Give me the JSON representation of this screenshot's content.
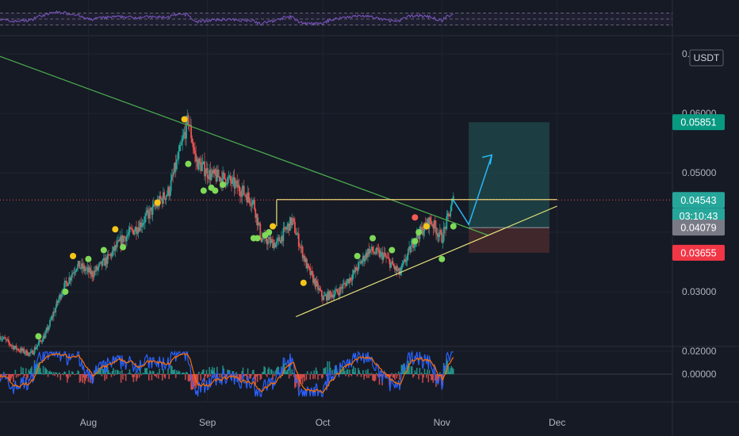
{
  "currency_badge": "USDT",
  "colors": {
    "background": "#161a25",
    "up_candle": "#26a69a",
    "down_candle": "#ef5350",
    "trendline": "#4caf50",
    "triangle": "#e6e27a",
    "rsi_line": "#7e57c2",
    "macd_line": "#2962ff",
    "signal_line": "#ff6d00",
    "projection_arrow": "#29b6f6",
    "profit_zone": "#1f4f4f",
    "loss_zone": "#4a2a2e"
  },
  "chart_data": {
    "type": "candlestick",
    "symbol_quote": "USDT",
    "x_axis": {
      "tick_labels": [
        "Aug",
        "Sep",
        "Oct",
        "Nov",
        "Dec"
      ],
      "tick_dates": [
        "2023-08-01",
        "2023-09-01",
        "2023-10-01",
        "2023-11-01",
        "2023-12-01"
      ],
      "range": [
        "2023-07-09",
        "2023-12-31"
      ]
    },
    "y_axis": {
      "tick_labels": [
        "0.07000",
        "0.06000",
        "0.05000",
        "0.04000",
        "0.03000",
        "0.02000"
      ],
      "tick_values": [
        0.07,
        0.06,
        0.05,
        0.04,
        0.03,
        0.02
      ],
      "range": [
        0.018,
        0.072
      ]
    },
    "price_labels": [
      {
        "text": "0.05851",
        "value": 0.05851,
        "role": "take-profit",
        "color": "#089981"
      },
      {
        "text": "0.04543",
        "value": 0.04543,
        "role": "last-price",
        "color": "#26a69a"
      },
      {
        "text": "03:10:43",
        "role": "candle-countdown",
        "color": "#26a69a"
      },
      {
        "text": "0.04079",
        "value": 0.04079,
        "role": "entry",
        "color": "#787b86"
      },
      {
        "text": "0.03655",
        "value": 0.03655,
        "role": "stop-loss",
        "color": "#f23645"
      }
    ],
    "price_path": [
      [
        "2023-07-09",
        0.0225
      ],
      [
        "2023-07-13",
        0.0205
      ],
      [
        "2023-07-17",
        0.0195
      ],
      [
        "2023-07-21",
        0.023
      ],
      [
        "2023-07-25",
        0.03
      ],
      [
        "2023-07-29",
        0.0345
      ],
      [
        "2023-08-02",
        0.033
      ],
      [
        "2023-08-06",
        0.0355
      ],
      [
        "2023-08-10",
        0.039
      ],
      [
        "2023-08-14",
        0.041
      ],
      [
        "2023-08-18",
        0.044
      ],
      [
        "2023-08-22",
        0.047
      ],
      [
        "2023-08-25",
        0.054
      ],
      [
        "2023-08-27",
        0.059
      ],
      [
        "2023-08-29",
        0.052
      ],
      [
        "2023-09-02",
        0.0495
      ],
      [
        "2023-09-06",
        0.049
      ],
      [
        "2023-09-10",
        0.047
      ],
      [
        "2023-09-13",
        0.045
      ],
      [
        "2023-09-15",
        0.039
      ],
      [
        "2023-09-19",
        0.038
      ],
      [
        "2023-09-23",
        0.042
      ],
      [
        "2023-09-27",
        0.034
      ],
      [
        "2023-10-01",
        0.029
      ],
      [
        "2023-10-05",
        0.03
      ],
      [
        "2023-10-09",
        0.033
      ],
      [
        "2023-10-13",
        0.037
      ],
      [
        "2023-10-17",
        0.036
      ],
      [
        "2023-10-21",
        0.033
      ],
      [
        "2023-10-25",
        0.039
      ],
      [
        "2023-10-29",
        0.042
      ],
      [
        "2023-11-01",
        0.039
      ],
      [
        "2023-11-04",
        0.0454
      ]
    ],
    "signal_dots": [
      {
        "date": "2023-07-19",
        "price": 0.0225,
        "color": "green"
      },
      {
        "date": "2023-07-26",
        "price": 0.03,
        "color": "green"
      },
      {
        "date": "2023-07-28",
        "price": 0.036,
        "color": "yellow"
      },
      {
        "date": "2023-08-01",
        "price": 0.0355,
        "color": "green"
      },
      {
        "date": "2023-08-05",
        "price": 0.037,
        "color": "green"
      },
      {
        "date": "2023-08-08",
        "price": 0.0405,
        "color": "yellow"
      },
      {
        "date": "2023-08-10",
        "price": 0.0375,
        "color": "green"
      },
      {
        "date": "2023-08-19",
        "price": 0.045,
        "color": "yellow"
      },
      {
        "date": "2023-08-26",
        "price": 0.059,
        "color": "yellow"
      },
      {
        "date": "2023-08-27",
        "price": 0.0515,
        "color": "green"
      },
      {
        "date": "2023-08-31",
        "price": 0.047,
        "color": "green"
      },
      {
        "date": "2023-09-02",
        "price": 0.0475,
        "color": "green"
      },
      {
        "date": "2023-09-03",
        "price": 0.047,
        "color": "green"
      },
      {
        "date": "2023-09-05",
        "price": 0.048,
        "color": "green"
      },
      {
        "date": "2023-09-13",
        "price": 0.039,
        "color": "green"
      },
      {
        "date": "2023-09-14",
        "price": 0.039,
        "color": "green"
      },
      {
        "date": "2023-09-16",
        "price": 0.0395,
        "color": "green"
      },
      {
        "date": "2023-09-17",
        "price": 0.04,
        "color": "green"
      },
      {
        "date": "2023-09-18",
        "price": 0.041,
        "color": "yellow"
      },
      {
        "date": "2023-09-26",
        "price": 0.0315,
        "color": "yellow"
      },
      {
        "date": "2023-10-10",
        "price": 0.036,
        "color": "green"
      },
      {
        "date": "2023-10-14",
        "price": 0.039,
        "color": "green"
      },
      {
        "date": "2023-10-19",
        "price": 0.037,
        "color": "green"
      },
      {
        "date": "2023-10-25",
        "price": 0.0385,
        "color": "green"
      },
      {
        "date": "2023-10-25",
        "price": 0.0425,
        "color": "red"
      },
      {
        "date": "2023-10-26",
        "price": 0.04,
        "color": "green"
      },
      {
        "date": "2023-10-28",
        "price": 0.041,
        "color": "yellow"
      },
      {
        "date": "2023-11-01",
        "price": 0.0355,
        "color": "green"
      },
      {
        "date": "2023-11-04",
        "price": 0.041,
        "color": "green"
      }
    ],
    "drawings": {
      "descending_trendline": {
        "from": [
          "2023-07-03",
          0.071
        ],
        "to": [
          "2023-11-13",
          0.0395
        ]
      },
      "resistance": {
        "from": [
          "2023-09-19",
          0.0455
        ],
        "to": [
          "2023-12-01",
          0.0455
        ]
      },
      "rising_support": {
        "from": [
          "2023-09-24",
          0.0258
        ],
        "to": [
          "2023-12-01",
          0.0444
        ]
      },
      "position": {
        "start": "2023-11-08",
        "end": "2023-11-29",
        "take_profit": 0.05851,
        "entry": 0.04079,
        "stop_loss": 0.03655
      },
      "projection": [
        [
          "2023-11-04",
          0.0454
        ],
        [
          "2023-11-08",
          0.0413
        ],
        [
          "2023-11-14",
          0.053
        ]
      ]
    },
    "rsi_band": {
      "upper": 70,
      "lower": 30
    },
    "macd_pane": {
      "tick_labels": [
        "0.00000"
      ],
      "tick_values": [
        0
      ]
    }
  }
}
